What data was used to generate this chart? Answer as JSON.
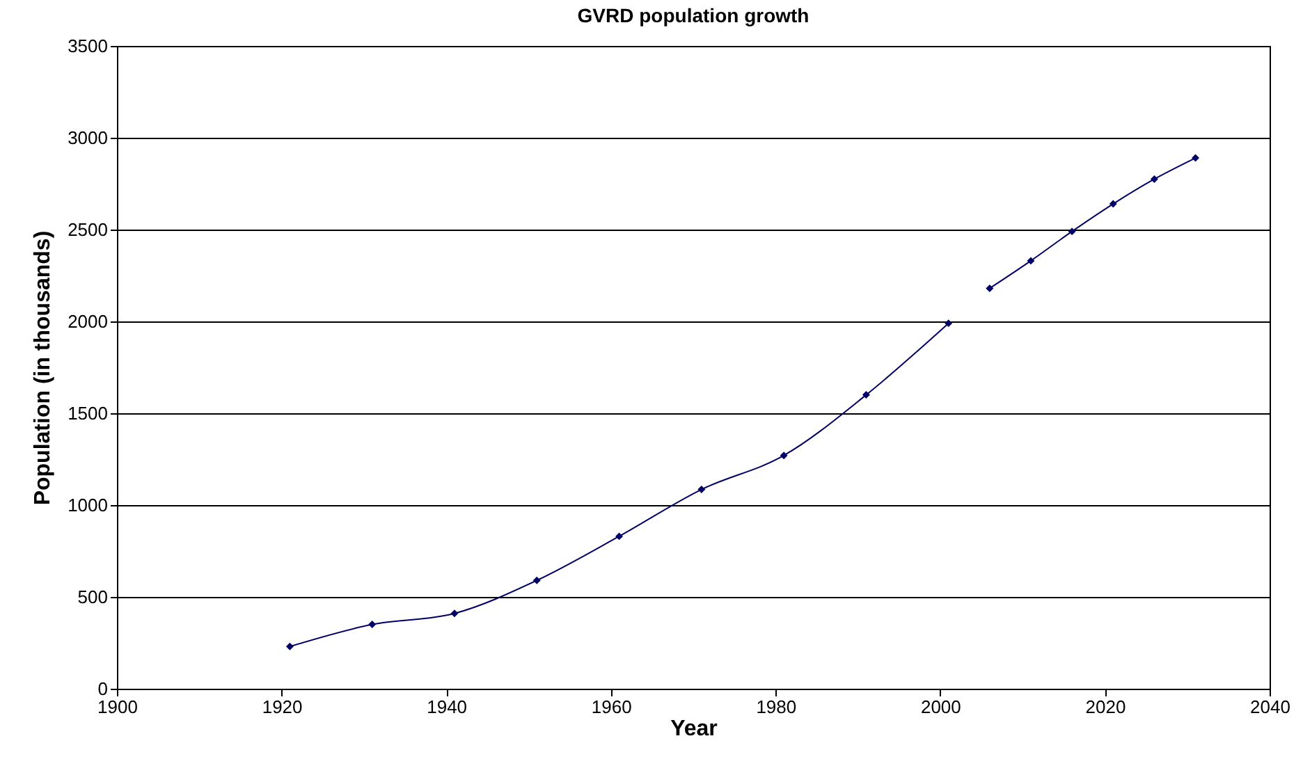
{
  "chart_data": {
    "type": "line",
    "title": "GVRD population growth",
    "xlabel": "Year",
    "ylabel": "Population (in thousands)",
    "series": [
      {
        "color": "#000066",
        "x": [
          1921,
          1931,
          1941,
          1951,
          1961,
          1971,
          1981,
          1991,
          2001
        ],
        "values": [
          230,
          350,
          410,
          590,
          830,
          1085,
          1270,
          1600,
          1990
        ]
      },
      {
        "color": "#000066",
        "x": [
          2006,
          2011,
          2016,
          2021,
          2026,
          2031
        ],
        "values": [
          2180,
          2330,
          2490,
          2640,
          2775,
          2890
        ]
      }
    ],
    "xlim": [
      1900,
      2040
    ],
    "xticks": [
      1900,
      1920,
      1940,
      1960,
      1980,
      2000,
      2020,
      2040
    ],
    "ylim": [
      0,
      3500
    ],
    "yticks": [
      0,
      500,
      1000,
      1500,
      2000,
      2500,
      3000,
      3500
    ],
    "grid": "y",
    "marker": "diamond",
    "line_style": "solid"
  }
}
